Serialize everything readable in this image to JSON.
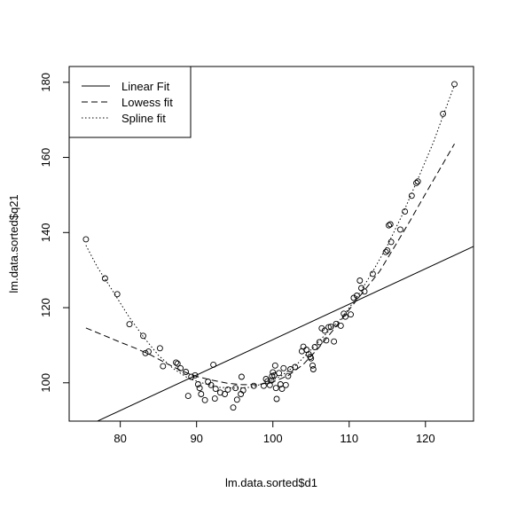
{
  "chart_data": {
    "type": "scatter",
    "title": "",
    "xlabel": "lm.data.sorted$d1",
    "ylabel": "lm.data.sorted$q21",
    "xlim": [
      73.3,
      126.3
    ],
    "ylim": [
      89.8,
      184.2
    ],
    "x_ticks": [
      80,
      90,
      100,
      110,
      120
    ],
    "y_ticks": [
      100,
      120,
      140,
      160,
      180
    ],
    "grid": false,
    "legend_position": "top-left",
    "legend": [
      {
        "label": "Linear Fit",
        "line_style": "solid"
      },
      {
        "label": "Lowess fit",
        "line_style": "dashed"
      },
      {
        "label": "Spline fit",
        "line_style": "dotted"
      }
    ],
    "points": [
      [
        75.5,
        138.2
      ],
      [
        78.0,
        127.8
      ],
      [
        79.6,
        123.6
      ],
      [
        81.2,
        115.6
      ],
      [
        83.0,
        112.5
      ],
      [
        83.3,
        107.9
      ],
      [
        83.7,
        108.3
      ],
      [
        85.2,
        109.2
      ],
      [
        85.6,
        104.4
      ],
      [
        87.3,
        105.4
      ],
      [
        87.5,
        105.1
      ],
      [
        87.9,
        103.9
      ],
      [
        88.6,
        102.9
      ],
      [
        88.9,
        96.5
      ],
      [
        89.3,
        101.6
      ],
      [
        89.8,
        102.0
      ],
      [
        90.2,
        99.6
      ],
      [
        90.4,
        98.6
      ],
      [
        90.6,
        97.0
      ],
      [
        91.1,
        95.4
      ],
      [
        91.5,
        100.3
      ],
      [
        91.9,
        99.4
      ],
      [
        92.2,
        104.8
      ],
      [
        92.4,
        95.8
      ],
      [
        92.5,
        98.4
      ],
      [
        93.1,
        97.4
      ],
      [
        93.7,
        97.0
      ],
      [
        94.1,
        98.2
      ],
      [
        94.8,
        93.4
      ],
      [
        95.1,
        98.6
      ],
      [
        95.3,
        95.5
      ],
      [
        95.8,
        97.0
      ],
      [
        95.9,
        101.6
      ],
      [
        96.1,
        98.0
      ],
      [
        97.5,
        99.2
      ],
      [
        98.8,
        99.2
      ],
      [
        99.1,
        101.0
      ],
      [
        99.3,
        100.4
      ],
      [
        99.6,
        99.4
      ],
      [
        99.8,
        100.6
      ],
      [
        99.9,
        101.8
      ],
      [
        100.0,
        102.8
      ],
      [
        100.2,
        102.0
      ],
      [
        100.3,
        104.6
      ],
      [
        100.4,
        98.6
      ],
      [
        100.5,
        95.7
      ],
      [
        100.8,
        102.6
      ],
      [
        101.0,
        99.6
      ],
      [
        101.2,
        98.4
      ],
      [
        101.4,
        103.9
      ],
      [
        101.7,
        99.4
      ],
      [
        102.0,
        101.8
      ],
      [
        102.3,
        103.6
      ],
      [
        102.9,
        104.2
      ],
      [
        103.8,
        108.4
      ],
      [
        104.0,
        109.6
      ],
      [
        104.4,
        108.8
      ],
      [
        104.7,
        107.6
      ],
      [
        104.9,
        106.9
      ],
      [
        105.0,
        106.5
      ],
      [
        105.2,
        104.6
      ],
      [
        105.3,
        103.6
      ],
      [
        105.5,
        109.5
      ],
      [
        106.1,
        110.8
      ],
      [
        106.4,
        114.5
      ],
      [
        106.8,
        113.9
      ],
      [
        107.0,
        111.3
      ],
      [
        107.3,
        114.8
      ],
      [
        107.6,
        114.9
      ],
      [
        108.0,
        111.0
      ],
      [
        108.3,
        115.7
      ],
      [
        108.9,
        115.2
      ],
      [
        109.3,
        118.4
      ],
      [
        109.5,
        117.6
      ],
      [
        110.2,
        118.2
      ],
      [
        110.6,
        122.6
      ],
      [
        111.0,
        123.2
      ],
      [
        111.4,
        127.2
      ],
      [
        111.6,
        125.2
      ],
      [
        112.0,
        124.3
      ],
      [
        113.1,
        129.0
      ],
      [
        114.8,
        134.8
      ],
      [
        115.0,
        135.2
      ],
      [
        115.2,
        141.9
      ],
      [
        115.4,
        142.2
      ],
      [
        115.5,
        137.5
      ],
      [
        116.7,
        140.8
      ],
      [
        117.3,
        145.6
      ],
      [
        118.2,
        149.8
      ],
      [
        118.8,
        153.2
      ],
      [
        119.0,
        153.6
      ],
      [
        122.3,
        171.6
      ],
      [
        123.8,
        179.5
      ]
    ],
    "series": [
      {
        "name": "Linear Fit",
        "line_style": "solid",
        "x": [
          73.3,
          126.3
        ],
        "y": [
          86.3,
          136.3
        ]
      },
      {
        "name": "Lowess fit",
        "line_style": "dashed",
        "x": [
          75.5,
          78.0,
          80.0,
          82.0,
          84.0,
          86.0,
          88.0,
          90.0,
          92.0,
          94.0,
          96.0,
          98.0,
          100.0,
          102.0,
          104.0,
          106.0,
          108.0,
          110.0,
          112.0,
          114.0,
          116.0,
          118.0,
          120.0,
          122.0,
          123.8
        ],
        "y": [
          114.6,
          112.5,
          110.8,
          109.2,
          107.4,
          105.2,
          103.2,
          101.7,
          100.7,
          99.9,
          99.5,
          99.5,
          100.2,
          101.9,
          104.9,
          109.3,
          114.3,
          119.5,
          124.6,
          129.7,
          136.4,
          143.2,
          150.3,
          157.3,
          163.6
        ]
      },
      {
        "name": "Spline fit",
        "line_style": "dotted",
        "x": [
          75.5,
          77.0,
          79.0,
          81.0,
          83.0,
          85.0,
          87.0,
          89.0,
          91.0,
          93.0,
          95.0,
          97.0,
          99.0,
          101.0,
          103.0,
          105.0,
          107.0,
          109.0,
          111.0,
          113.0,
          115.0,
          117.0,
          119.0,
          121.0,
          123.8
        ],
        "y": [
          136.6,
          130.8,
          124.5,
          118.0,
          112.3,
          107.3,
          103.7,
          101.1,
          99.8,
          98.8,
          98.6,
          98.8,
          99.9,
          101.7,
          104.6,
          108.8,
          113.1,
          117.2,
          122.7,
          129.3,
          136.5,
          144.9,
          154.2,
          163.8,
          179.3
        ]
      }
    ]
  }
}
